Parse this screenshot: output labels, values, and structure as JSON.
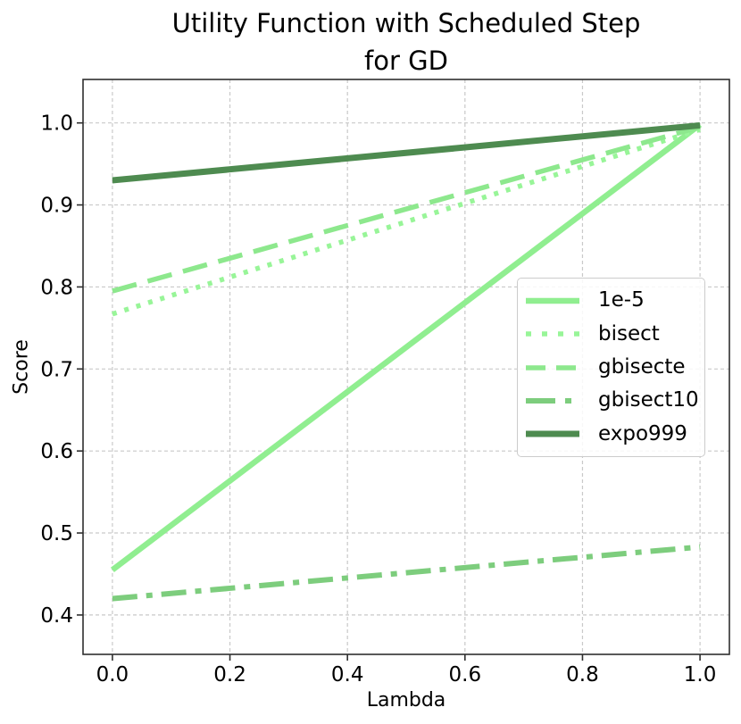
{
  "figure": {
    "title": "Utility Function with Scheduled Step\nfor GD",
    "xlabel": "Lambda",
    "ylabel": "Score",
    "background_color": "#ffffff",
    "grid_color": "#c9c9c9",
    "spine_color": "#2f2f2f",
    "tick_color": "#2f2f2f",
    "legend_border_color": "#cccccc"
  },
  "chart_data": {
    "type": "line",
    "title": "Utility Function with Scheduled Step for GD",
    "xlabel": "Lambda",
    "ylabel": "Score",
    "x": [
      0.0,
      1.0
    ],
    "series": [
      {
        "name": "1e-5",
        "values": [
          0.455,
          0.998
        ],
        "color": "#90EE90",
        "style": "solid",
        "width": 6.5
      },
      {
        "name": "bisect",
        "values": [
          0.767,
          0.992
        ],
        "color": "#98F598",
        "style": "dotted",
        "width": 5.5
      },
      {
        "name": "gbisecte",
        "values": [
          0.795,
          0.995
        ],
        "color": "#8DE88D",
        "style": "dashed",
        "width": 5.5
      },
      {
        "name": "gbisect10",
        "values": [
          0.42,
          0.483
        ],
        "color": "#7DCD7D",
        "style": "dashdot",
        "width": 6
      },
      {
        "name": "expo999",
        "values": [
          0.93,
          0.997
        ],
        "color": "#4E8B50",
        "style": "solid",
        "width": 7
      }
    ],
    "xticks": {
      "values": [
        0.0,
        0.2,
        0.4,
        0.6,
        0.8,
        1.0
      ],
      "labels": [
        "0.0",
        "0.2",
        "0.4",
        "0.6",
        "0.8",
        "1.0"
      ]
    },
    "yticks": {
      "values": [
        0.4,
        0.5,
        0.6,
        0.7,
        0.8,
        0.9,
        1.0
      ],
      "labels": [
        "0.4",
        "0.5",
        "0.6",
        "0.7",
        "0.8",
        "0.9",
        "1.0"
      ]
    },
    "xlim": [
      -0.05,
      1.05
    ],
    "ylim": [
      0.352,
      1.053
    ],
    "grid": true,
    "legend_position": "center right"
  }
}
